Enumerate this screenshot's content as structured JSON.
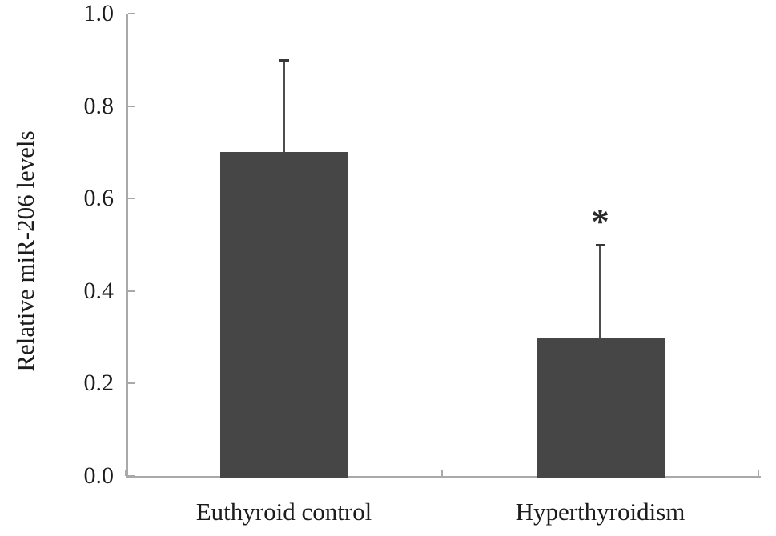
{
  "chart_data": {
    "type": "bar",
    "title": "",
    "xlabel": "",
    "ylabel": "Relative miR-206 levels",
    "categories": [
      "Euthyroid control",
      "Hyperthyroidism"
    ],
    "series": [
      {
        "name": "Relative miR-206 levels",
        "values": [
          0.7,
          0.3
        ],
        "error_up": [
          0.2,
          0.2
        ]
      }
    ],
    "annotations": [
      {
        "category_index": 1,
        "text": "*",
        "meaning": "significant difference marker"
      }
    ],
    "ylim": [
      0.0,
      1.0
    ],
    "yticks": [
      0.0,
      0.2,
      0.4,
      0.6,
      0.8,
      1.0
    ],
    "ytick_labels": [
      "0.0",
      "0.2",
      "0.4",
      "0.6",
      "0.8",
      "1.0"
    ],
    "grid": false,
    "legend": "none",
    "colors": {
      "bar_fill": "#464646",
      "axis_line": "#a9a9a9",
      "error_line": "#4d4d4d",
      "error_cap": "#383838",
      "text": "#1c1c1c",
      "background": "#ffffff"
    }
  }
}
